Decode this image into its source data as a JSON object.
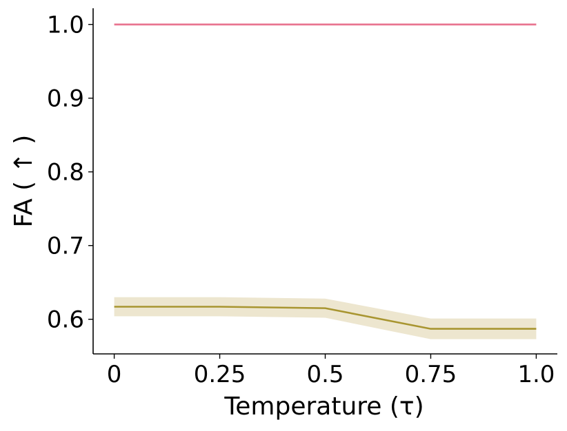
{
  "chart_data": {
    "type": "line",
    "xlabel": "Temperature (τ)",
    "ylabel": "FA ( ↑ )",
    "x": [
      0,
      0.25,
      0.5,
      0.75,
      1.0
    ],
    "x_tick_labels": [
      "0",
      "0.25",
      "0.5",
      "0.75",
      "1.0"
    ],
    "y_ticks": [
      0.6,
      0.7,
      0.8,
      0.9,
      1.0
    ],
    "y_tick_labels": [
      "0.6",
      "0.7",
      "0.8",
      "0.9",
      "1.0"
    ],
    "xlim": [
      -0.05,
      1.05
    ],
    "ylim": [
      0.553,
      1.022
    ],
    "grid": false,
    "series": [
      {
        "color": "#e8718d",
        "values": [
          1.0,
          1.0,
          1.0,
          1.0,
          1.0
        ]
      },
      {
        "color": "#a89530",
        "band_color": "#ede6cf",
        "values": [
          0.617,
          0.617,
          0.615,
          0.587,
          0.587
        ],
        "lower": [
          0.604,
          0.604,
          0.602,
          0.573,
          0.573
        ],
        "upper": [
          0.63,
          0.63,
          0.628,
          0.601,
          0.601
        ]
      }
    ]
  }
}
